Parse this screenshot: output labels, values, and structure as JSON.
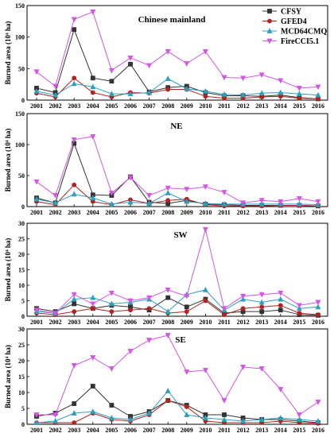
{
  "chart_data": [
    {
      "type": "line",
      "title": "Chinese mainland",
      "ylabel": "Burned area (10⁴ ha)",
      "xlabel": "",
      "ylim": [
        0,
        150
      ],
      "yticks": [
        0,
        50,
        100,
        150
      ],
      "categories": [
        "2001",
        "2002",
        "2003",
        "2004",
        "2005",
        "2006",
        "2007",
        "2008",
        "2009",
        "2010",
        "2011",
        "2012",
        "2013",
        "2014",
        "2015",
        "2016"
      ],
      "grid": false,
      "legend_position": "top-right",
      "series": [
        {
          "name": "CFSY",
          "color": "#333333",
          "marker": "square",
          "values": [
            19,
            12,
            112,
            35,
            30,
            57,
            13,
            20,
            22,
            12,
            7,
            7,
            6,
            8,
            4,
            2
          ]
        },
        {
          "name": "GFED4",
          "color": "#b22222",
          "marker": "circle",
          "values": [
            11,
            5,
            35,
            12,
            5,
            12,
            11,
            17,
            17,
            6,
            3,
            3,
            5,
            6,
            3,
            2
          ]
        },
        {
          "name": "MCD64CMQ",
          "color": "#2e9fbd",
          "marker": "triangle",
          "values": [
            14,
            8,
            26,
            21,
            10,
            10,
            12,
            34,
            18,
            14,
            9,
            8,
            11,
            12,
            10,
            8
          ]
        },
        {
          "name": "FireCCI5.1",
          "color": "#d455e6",
          "marker": "triangle-down",
          "values": [
            45,
            22,
            128,
            140,
            47,
            67,
            55,
            77,
            58,
            77,
            36,
            35,
            40,
            31,
            19,
            21
          ]
        }
      ]
    },
    {
      "type": "line",
      "title": "NE",
      "ylabel": "Burned area (10⁴ ha)",
      "xlabel": "",
      "ylim": [
        0,
        150
      ],
      "yticks": [
        0,
        50,
        100,
        150
      ],
      "categories": [
        "2001",
        "2002",
        "2003",
        "2004",
        "2005",
        "2006",
        "2007",
        "2008",
        "2009",
        "2010",
        "2011",
        "2012",
        "2013",
        "2014",
        "2015",
        "2016"
      ],
      "grid": false,
      "series": [
        {
          "name": "CFSY",
          "color": "#333333",
          "marker": "square",
          "values": [
            14,
            6,
            102,
            19,
            18,
            48,
            7,
            5,
            10,
            4,
            3,
            2,
            2,
            2,
            2,
            1
          ]
        },
        {
          "name": "GFED4",
          "color": "#b22222",
          "marker": "circle",
          "values": [
            8,
            3,
            35,
            8,
            3,
            11,
            5,
            10,
            12,
            3,
            1,
            1,
            1,
            2,
            2,
            1
          ]
        },
        {
          "name": "MCD64CMQ",
          "color": "#2e9fbd",
          "marker": "triangle",
          "values": [
            12,
            6,
            20,
            14,
            4,
            7,
            5,
            22,
            8,
            5,
            4,
            4,
            4,
            4,
            4,
            3
          ]
        },
        {
          "name": "FireCCI5.1",
          "color": "#d455e6",
          "marker": "triangle-down",
          "values": [
            40,
            18,
            108,
            113,
            22,
            47,
            18,
            30,
            28,
            32,
            23,
            6,
            10,
            8,
            13,
            8
          ]
        }
      ]
    },
    {
      "type": "line",
      "title": "SW",
      "ylabel": "Burned area (10⁴ ha)",
      "xlabel": "",
      "ylim": [
        0,
        30
      ],
      "yticks": [
        0,
        5,
        10,
        15,
        20,
        25,
        30
      ],
      "categories": [
        "2001",
        "2002",
        "2003",
        "2004",
        "2005",
        "2006",
        "2007",
        "2008",
        "2009",
        "2010",
        "2011",
        "2012",
        "2013",
        "2014",
        "2015",
        "2016"
      ],
      "grid": false,
      "series": [
        {
          "name": "CFSY",
          "color": "#333333",
          "marker": "square",
          "values": [
            2.5,
            1.5,
            4.0,
            2.5,
            3.5,
            3.0,
            2.0,
            6.0,
            3.0,
            5.5,
            1.0,
            1.5,
            1.5,
            2.0,
            0.5,
            0.3
          ]
        },
        {
          "name": "GFED4",
          "color": "#b22222",
          "marker": "circle",
          "values": [
            1.0,
            0.5,
            1.5,
            2.5,
            1.5,
            2.0,
            2.5,
            1.0,
            1.5,
            5.0,
            0.5,
            2.5,
            3.0,
            3.5,
            1.0,
            0.5
          ]
        },
        {
          "name": "MCD64CMQ",
          "color": "#2e9fbd",
          "marker": "triangle",
          "values": [
            1.5,
            1.0,
            5.5,
            6.0,
            4.0,
            4.5,
            5.5,
            1.5,
            7.0,
            8.5,
            2.0,
            5.5,
            4.5,
            5.5,
            2.5,
            3.0
          ]
        },
        {
          "name": "FireCCI5.1",
          "color": "#d455e6",
          "marker": "triangle-down",
          "values": [
            2.0,
            1.0,
            7.0,
            4.0,
            7.5,
            5.0,
            6.0,
            8.5,
            6.5,
            28.0,
            2.5,
            6.5,
            7.0,
            7.5,
            3.5,
            4.5
          ]
        }
      ]
    },
    {
      "type": "line",
      "title": "SE",
      "ylabel": "Burned area (10⁴ ha)",
      "xlabel": "",
      "ylim": [
        0,
        30
      ],
      "yticks": [
        0,
        5,
        10,
        15,
        20,
        25,
        30
      ],
      "categories": [
        "2001",
        "2002",
        "2003",
        "2004",
        "2005",
        "2006",
        "2007",
        "2008",
        "2009",
        "2010",
        "2011",
        "2012",
        "2013",
        "2014",
        "2015",
        "2016"
      ],
      "grid": false,
      "series": [
        {
          "name": "CFSY",
          "color": "#333333",
          "marker": "square",
          "values": [
            2.5,
            3.5,
            6.5,
            12.0,
            6.0,
            2.5,
            4.0,
            7.5,
            6.0,
            3.0,
            3.0,
            2.0,
            1.5,
            1.5,
            1.0,
            0.5
          ]
        },
        {
          "name": "GFED4",
          "color": "#b22222",
          "marker": "circle",
          "values": [
            0.5,
            0.5,
            0.5,
            3.5,
            1.5,
            1.0,
            3.0,
            7.5,
            5.5,
            1.0,
            0.5,
            0.5,
            0.5,
            1.0,
            0.5,
            0.3
          ]
        },
        {
          "name": "MCD64CMQ",
          "color": "#2e9fbd",
          "marker": "triangle",
          "values": [
            0.5,
            1.0,
            3.5,
            4.0,
            2.0,
            1.5,
            3.5,
            10.5,
            3.0,
            2.0,
            1.5,
            1.0,
            1.5,
            2.0,
            1.5,
            1.0
          ]
        },
        {
          "name": "FireCCI5.1",
          "color": "#d455e6",
          "marker": "triangle-down",
          "values": [
            3.0,
            3.0,
            18.5,
            21.0,
            17.5,
            23.0,
            26.5,
            28.0,
            16.5,
            17.0,
            7.5,
            18.0,
            17.5,
            11.0,
            3.0,
            7.0
          ]
        }
      ]
    }
  ]
}
